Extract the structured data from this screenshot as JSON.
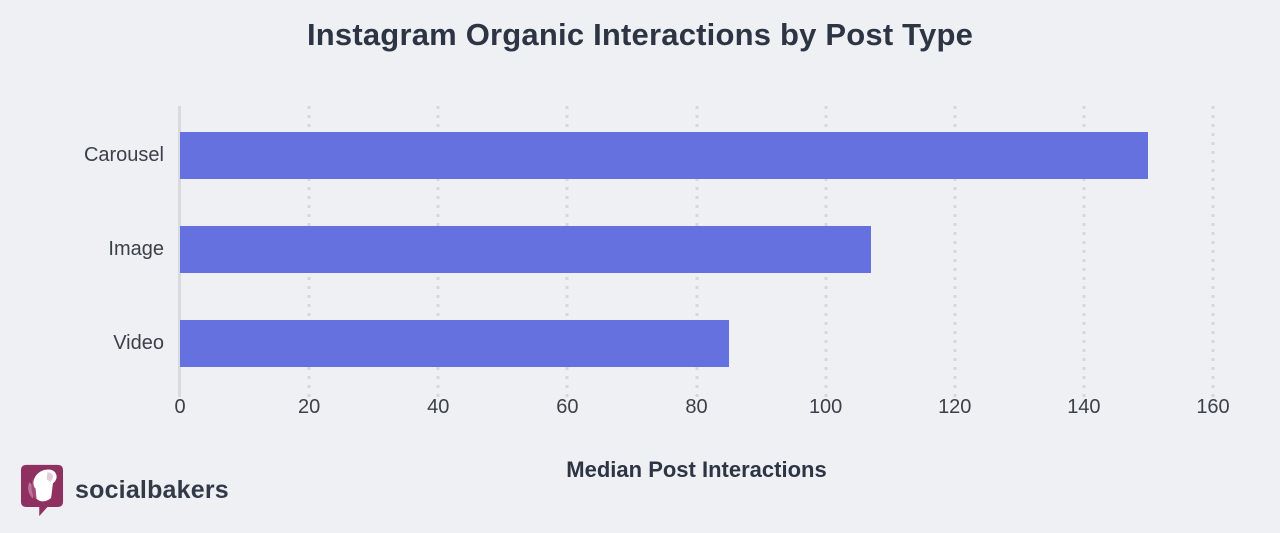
{
  "title": "Instagram Organic Interactions by Post Type",
  "chart_data": {
    "type": "bar",
    "orientation": "horizontal",
    "title": "Instagram Organic Interactions by Post Type",
    "categories": [
      "Carousel",
      "Image",
      "Video"
    ],
    "values": [
      150,
      107,
      85
    ],
    "xlabel": "Median Post Interactions",
    "ylabel": "",
    "x_ticks": [
      0,
      20,
      40,
      60,
      80,
      100,
      120,
      140,
      160
    ],
    "xlim": [
      0,
      160
    ],
    "grid": "vertical-dotted",
    "legend": "none",
    "bar_color": "#6571de"
  },
  "branding": {
    "logo_text": "socialbakers",
    "logo_icon": "socialbakers-chef-bubble-icon"
  },
  "colors": {
    "background": "#eef0f3",
    "bar": "#6571de",
    "title_text": "#2d3544",
    "label_text": "#3b4049",
    "axis_line": "#d7dade",
    "gridline": "#d4d7dc",
    "logo_maroon": "#8e3060",
    "logo_pink": "#c0729c"
  }
}
